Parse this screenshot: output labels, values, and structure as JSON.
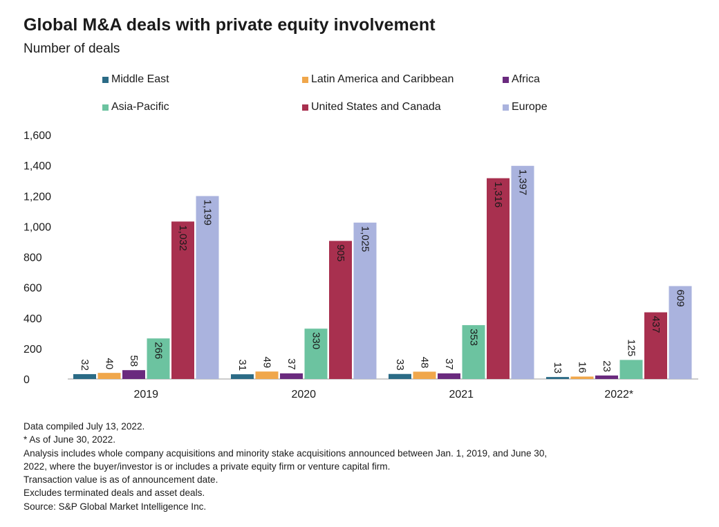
{
  "title": "Global M&A deals with private equity involvement",
  "subtitle": "Number of deals",
  "chart_data": {
    "type": "bar",
    "categories": [
      "2019",
      "2020",
      "2021",
      "2022*"
    ],
    "series": [
      {
        "name": "Middle East",
        "color": "#2b6b86",
        "values": [
          32,
          31,
          33,
          13
        ],
        "labels": [
          "32",
          "31",
          "33",
          "13"
        ]
      },
      {
        "name": "Latin America and Caribbean",
        "color": "#f0a74b",
        "values": [
          40,
          49,
          48,
          16
        ],
        "labels": [
          "40",
          "49",
          "48",
          "16"
        ]
      },
      {
        "name": "Africa",
        "color": "#6a2a7e",
        "values": [
          58,
          37,
          37,
          23
        ],
        "labels": [
          "58",
          "37",
          "37",
          "23"
        ]
      },
      {
        "name": "Asia-Pacific",
        "color": "#6cc3a0",
        "values": [
          266,
          330,
          353,
          125
        ],
        "labels": [
          "266",
          "330",
          "353",
          "125"
        ]
      },
      {
        "name": "United States and Canada",
        "color": "#a8304f",
        "values": [
          1032,
          905,
          1316,
          437
        ],
        "labels": [
          "1,032",
          "905",
          "1,316",
          "437"
        ]
      },
      {
        "name": "Europe",
        "color": "#aab3de",
        "values": [
          1199,
          1025,
          1397,
          609
        ],
        "labels": [
          "1,199",
          "1,025",
          "1,397",
          "609"
        ]
      }
    ],
    "yticks": [
      "0",
      "200",
      "400",
      "600",
      "800",
      "1,000",
      "1,200",
      "1,400",
      "1,600"
    ],
    "ylim": [
      0,
      1600
    ],
    "legend_position": "top",
    "grid": false
  },
  "notes": [
    "Data compiled July 13, 2022.",
    "* As of June 30, 2022.",
    "Analysis includes whole company acquisitions and minority stake acquisitions announced between Jan. 1, 2019, and June 30,",
    "2022, where the buyer/investor is or includes a private equity firm or venture capital firm.",
    "Transaction value is as of announcement date.",
    "Excludes terminated deals and asset deals.",
    "Source: S&P Global Market Intelligence Inc."
  ]
}
